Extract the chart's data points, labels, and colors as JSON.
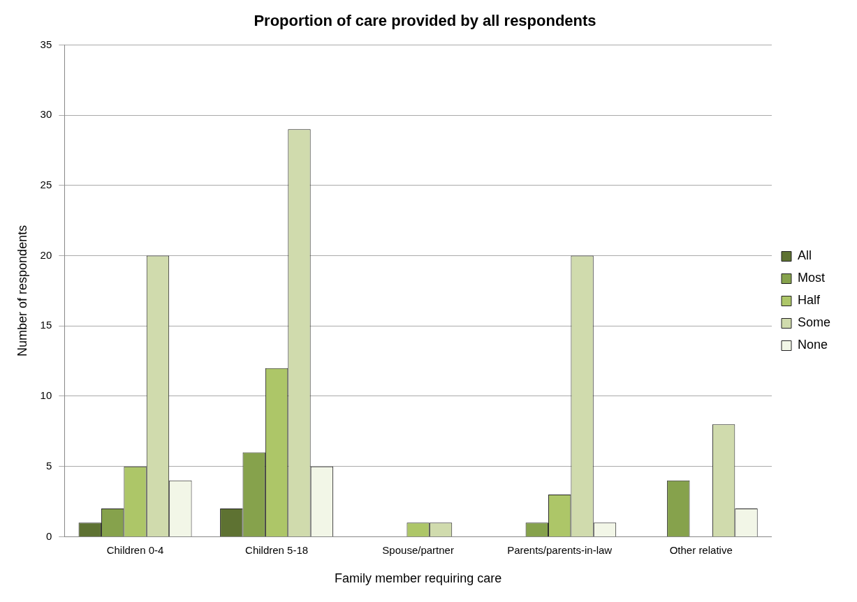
{
  "chart_data": {
    "type": "bar",
    "title": "Proportion of care provided by all respondents",
    "xlabel": "Family member requiring care",
    "ylabel": "Number of respondents",
    "categories": [
      "Children 0-4",
      "Children 5-18",
      "Spouse/partner",
      "Parents/parents-in-law",
      "Other relative"
    ],
    "series": [
      {
        "name": "All",
        "color": "#5e7232",
        "values": [
          1,
          2,
          0,
          0,
          0
        ]
      },
      {
        "name": "Most",
        "color": "#86a24c",
        "values": [
          2,
          6,
          0,
          1,
          4
        ]
      },
      {
        "name": "Half",
        "color": "#adc668",
        "values": [
          5,
          12,
          1,
          3,
          0
        ]
      },
      {
        "name": "Some",
        "color": "#d0dbad",
        "values": [
          20,
          29,
          1,
          20,
          8
        ]
      },
      {
        "name": "None",
        "color": "#f2f6e7",
        "values": [
          4,
          5,
          0,
          1,
          2
        ]
      }
    ],
    "ylim": [
      0,
      35
    ],
    "yticks": [
      0,
      5,
      10,
      15,
      20,
      25,
      30,
      35
    ],
    "grid": "y",
    "legend": "right"
  }
}
